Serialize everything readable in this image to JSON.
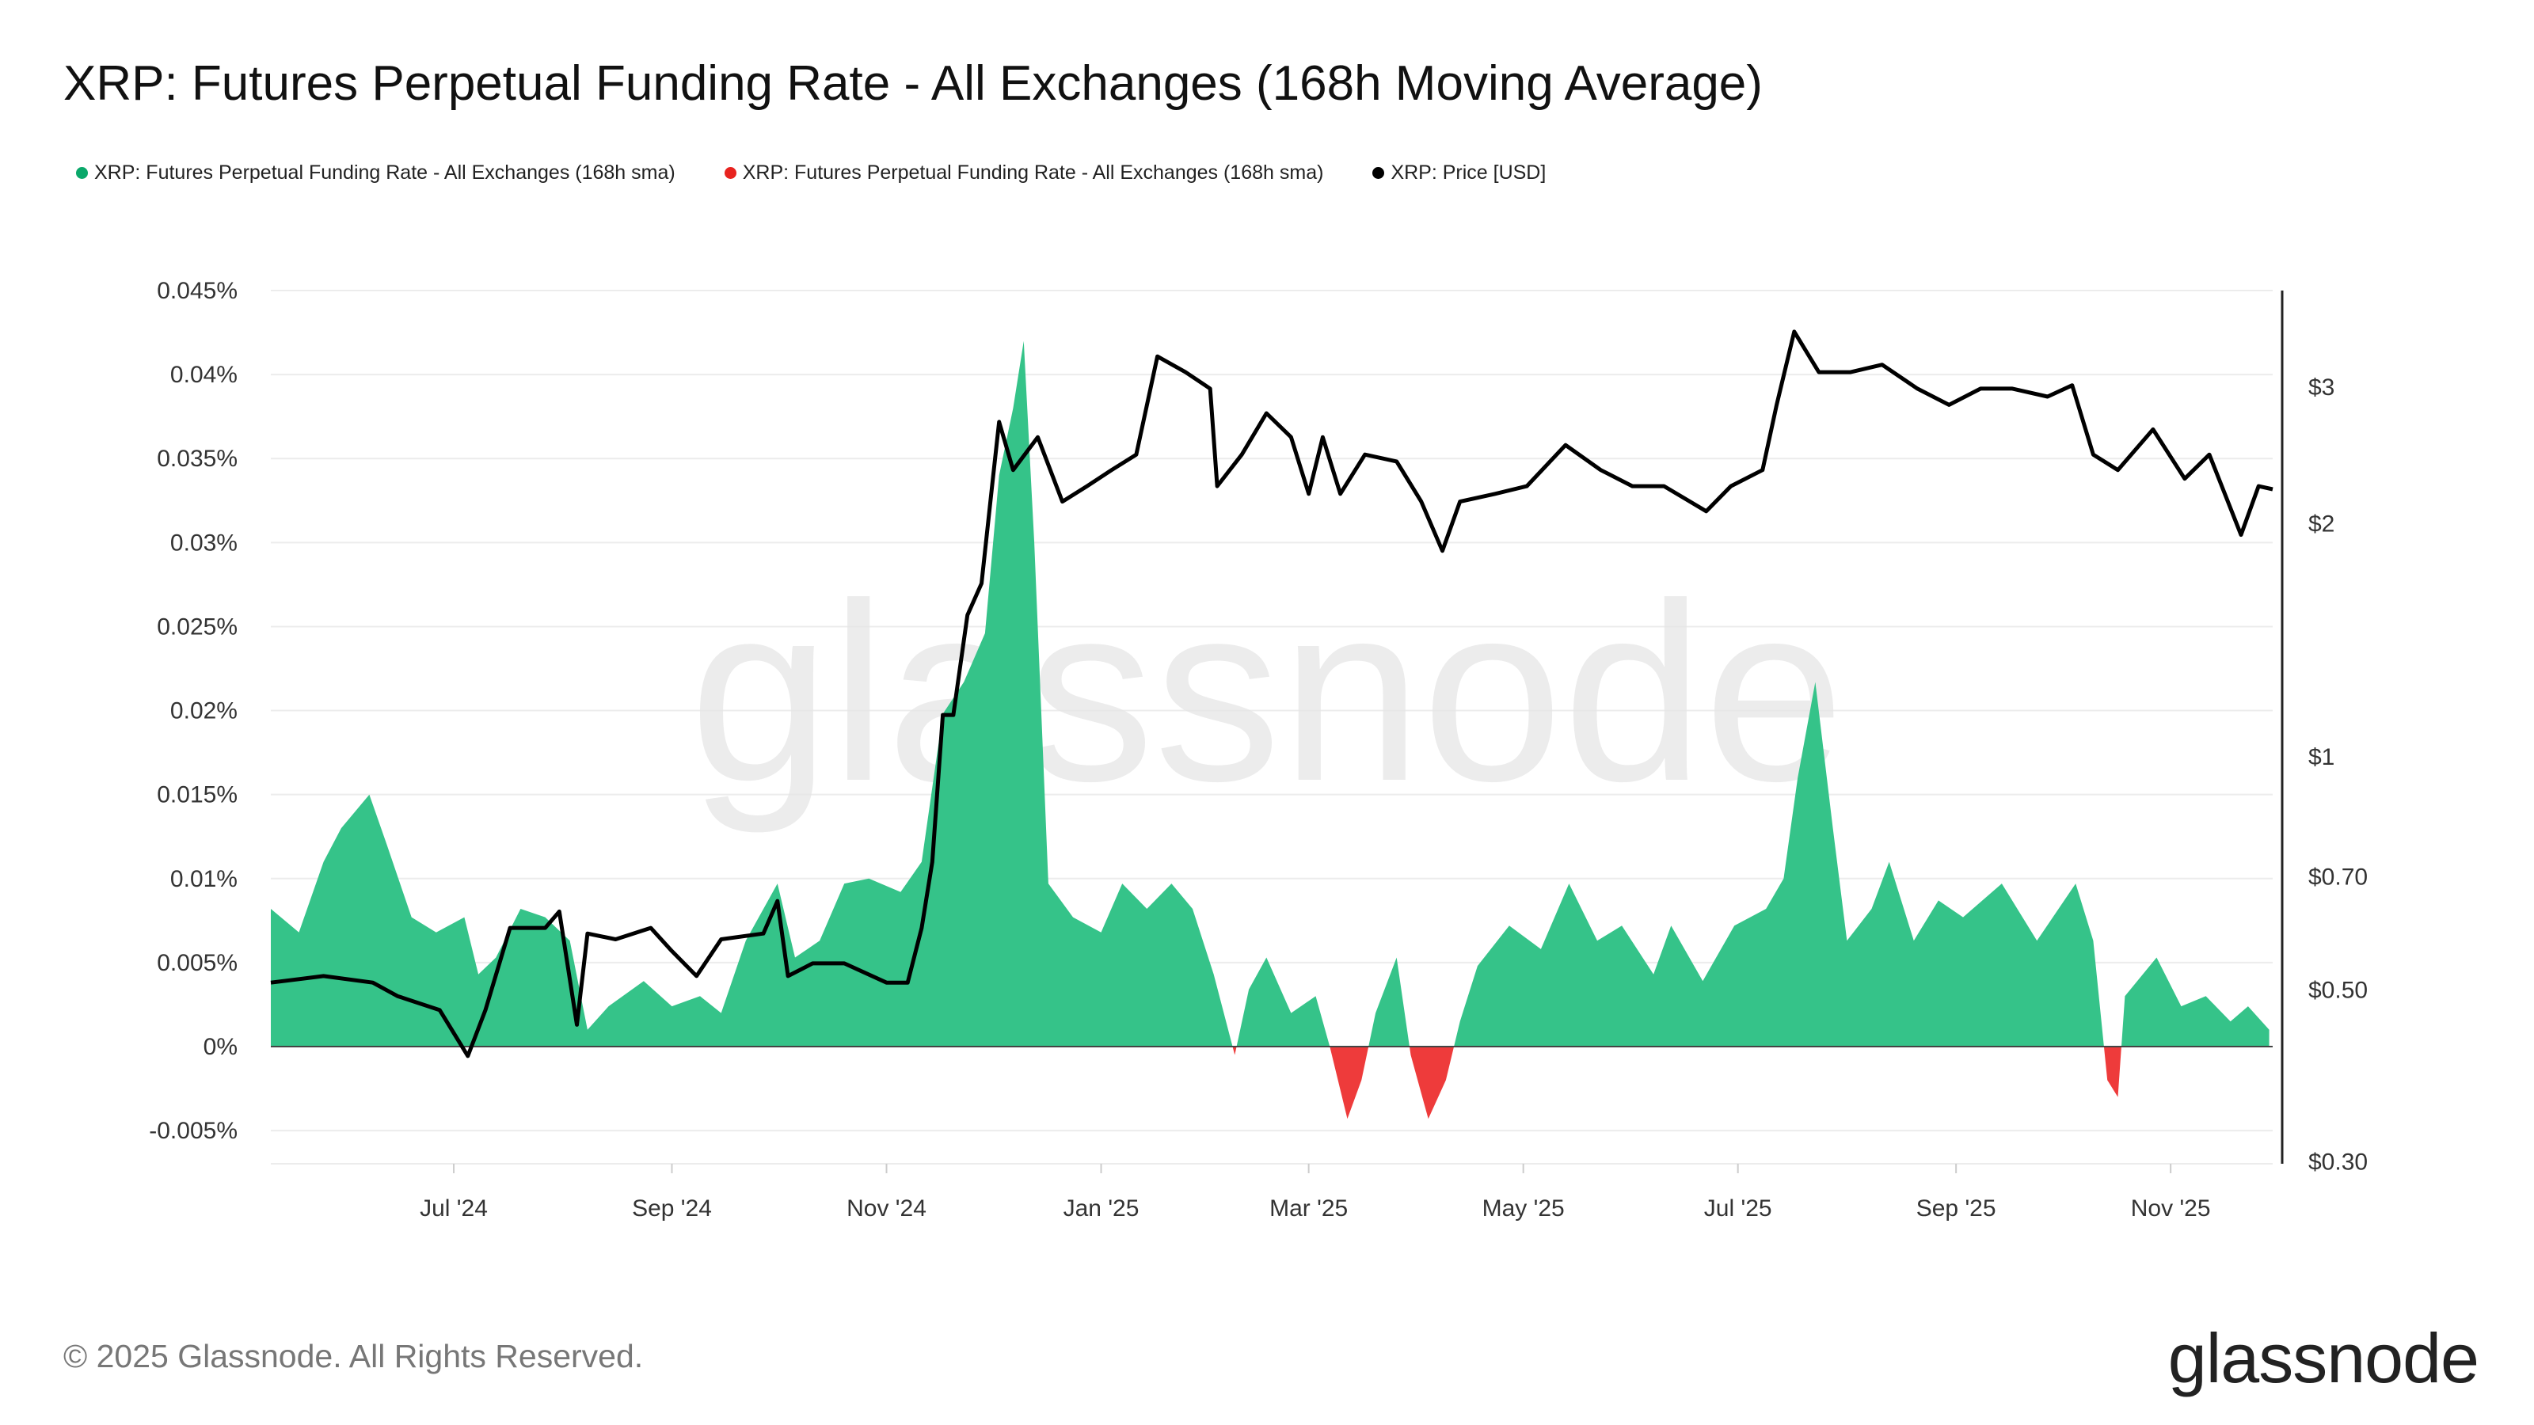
{
  "title": "XRP: Futures Perpetual Funding Rate - All Exchanges (168h Moving Average)",
  "legend": [
    {
      "label": "XRP: Futures Perpetual Funding Rate - All Exchanges (168h sma)",
      "color": "#0aa86a"
    },
    {
      "label": "XRP: Futures Perpetual Funding Rate - All Exchanges (168h sma)",
      "color": "#e8231f"
    },
    {
      "label": "XRP: Price [USD]",
      "color": "#000000"
    }
  ],
  "footer": {
    "copyright": "© 2025 Glassnode. All Rights Reserved.",
    "logo": "glassnode",
    "watermark": "glassnode"
  },
  "chart_data": {
    "type": "area+line",
    "title": "XRP: Futures Perpetual Funding Rate - All Exchanges (168h Moving Average)",
    "x_range": [
      "2024-05-10",
      "2025-11-30"
    ],
    "x_ticks": [
      {
        "date": "2024-07-01",
        "label": "Jul '24"
      },
      {
        "date": "2024-09-01",
        "label": "Sep '24"
      },
      {
        "date": "2024-11-01",
        "label": "Nov '24"
      },
      {
        "date": "2025-01-01",
        "label": "Jan '25"
      },
      {
        "date": "2025-03-01",
        "label": "Mar '25"
      },
      {
        "date": "2025-05-01",
        "label": "May '25"
      },
      {
        "date": "2025-07-01",
        "label": "Jul '25"
      },
      {
        "date": "2025-09-01",
        "label": "Sep '25"
      },
      {
        "date": "2025-11-01",
        "label": "Nov '25"
      }
    ],
    "y_left": {
      "unit": "%",
      "range": [
        -0.007,
        0.045
      ],
      "ticks": [
        0.045,
        0.04,
        0.035,
        0.03,
        0.025,
        0.02,
        0.015,
        0.01,
        0.005,
        0,
        -0.005
      ],
      "tick_labels": [
        "0.045%",
        "0.04%",
        "0.035%",
        "0.03%",
        "0.025%",
        "0.02%",
        "0.015%",
        "0.01%",
        "0.005%",
        "0%",
        "-0.005%"
      ]
    },
    "y_right": {
      "scale": "log",
      "range": [
        0.3,
        3.8
      ],
      "ticks": [
        3,
        2,
        1,
        0.7,
        0.5,
        0.3
      ],
      "tick_labels": [
        "$3",
        "$2",
        "$1",
        "$0.70",
        "$0.50",
        "$0.30"
      ]
    },
    "grid": true,
    "legend_position": "top-left",
    "positive_color": "#35c389",
    "negative_color": "#ee3b3b",
    "price_color": "#000000",
    "funding_rate": [
      [
        "2024-05-10",
        0.0082
      ],
      [
        "2024-05-18",
        0.0068
      ],
      [
        "2024-05-25",
        0.011
      ],
      [
        "2024-05-30",
        0.013
      ],
      [
        "2024-06-07",
        0.015
      ],
      [
        "2024-06-12",
        0.012
      ],
      [
        "2024-06-19",
        0.0077
      ],
      [
        "2024-06-26",
        0.0068
      ],
      [
        "2024-07-04",
        0.0077
      ],
      [
        "2024-07-08",
        0.0043
      ],
      [
        "2024-07-13",
        0.0053
      ],
      [
        "2024-07-20",
        0.0082
      ],
      [
        "2024-07-27",
        0.0077
      ],
      [
        "2024-08-03",
        0.0063
      ],
      [
        "2024-08-08",
        0.001
      ],
      [
        "2024-08-14",
        0.0024
      ],
      [
        "2024-08-24",
        0.0039
      ],
      [
        "2024-09-01",
        0.0024
      ],
      [
        "2024-09-09",
        0.003
      ],
      [
        "2024-09-15",
        0.002
      ],
      [
        "2024-09-22",
        0.0063
      ],
      [
        "2024-10-01",
        0.0097
      ],
      [
        "2024-10-06",
        0.0053
      ],
      [
        "2024-10-13",
        0.0063
      ],
      [
        "2024-10-20",
        0.0097
      ],
      [
        "2024-10-27",
        0.01
      ],
      [
        "2024-11-05",
        0.0092
      ],
      [
        "2024-11-11",
        0.011
      ],
      [
        "2024-11-17",
        0.0198
      ],
      [
        "2024-11-23",
        0.0217
      ],
      [
        "2024-11-29",
        0.0246
      ],
      [
        "2024-12-03",
        0.034
      ],
      [
        "2024-12-07",
        0.038
      ],
      [
        "2024-12-10",
        0.042
      ],
      [
        "2024-12-13",
        0.03
      ],
      [
        "2024-12-17",
        0.0097
      ],
      [
        "2024-12-24",
        0.0077
      ],
      [
        "2025-01-01",
        0.0068
      ],
      [
        "2025-01-07",
        0.0097
      ],
      [
        "2025-01-14",
        0.0082
      ],
      [
        "2025-01-21",
        0.0097
      ],
      [
        "2025-01-27",
        0.0082
      ],
      [
        "2025-02-02",
        0.0043
      ],
      [
        "2025-02-08",
        -0.0005
      ],
      [
        "2025-02-12",
        0.0034
      ],
      [
        "2025-02-17",
        0.0053
      ],
      [
        "2025-02-24",
        0.002
      ],
      [
        "2025-03-03",
        0.003
      ],
      [
        "2025-03-07",
        0
      ],
      [
        "2025-03-12",
        -0.0043
      ],
      [
        "2025-03-16",
        -0.002
      ],
      [
        "2025-03-20",
        0.002
      ],
      [
        "2025-03-26",
        0.0053
      ],
      [
        "2025-03-30",
        -0.0005
      ],
      [
        "2025-04-04",
        -0.0043
      ],
      [
        "2025-04-09",
        -0.002
      ],
      [
        "2025-04-13",
        0.0015
      ],
      [
        "2025-04-18",
        0.0048
      ],
      [
        "2025-04-27",
        0.0072
      ],
      [
        "2025-05-06",
        0.0058
      ],
      [
        "2025-05-14",
        0.0097
      ],
      [
        "2025-05-22",
        0.0063
      ],
      [
        "2025-05-29",
        0.0072
      ],
      [
        "2025-06-07",
        0.0043
      ],
      [
        "2025-06-12",
        0.0072
      ],
      [
        "2025-06-21",
        0.0039
      ],
      [
        "2025-06-30",
        0.0072
      ],
      [
        "2025-07-09",
        0.0082
      ],
      [
        "2025-07-14",
        0.01
      ],
      [
        "2025-07-18",
        0.016
      ],
      [
        "2025-07-23",
        0.0217
      ],
      [
        "2025-07-28",
        0.013
      ],
      [
        "2025-08-01",
        0.0063
      ],
      [
        "2025-08-08",
        0.0082
      ],
      [
        "2025-08-13",
        0.011
      ],
      [
        "2025-08-20",
        0.0063
      ],
      [
        "2025-08-27",
        0.0087
      ],
      [
        "2025-09-03",
        0.0077
      ],
      [
        "2025-09-14",
        0.0097
      ],
      [
        "2025-09-24",
        0.0063
      ],
      [
        "2025-10-05",
        0.0097
      ],
      [
        "2025-10-10",
        0.0063
      ],
      [
        "2025-10-14",
        -0.002
      ],
      [
        "2025-10-17",
        -0.003
      ],
      [
        "2025-10-19",
        0.003
      ],
      [
        "2025-10-28",
        0.0053
      ],
      [
        "2025-11-04",
        0.0024
      ],
      [
        "2025-11-11",
        0.003
      ],
      [
        "2025-11-18",
        0.0015
      ],
      [
        "2025-11-23",
        0.0024
      ],
      [
        "2025-11-29",
        0.001
      ]
    ],
    "price_usd": [
      [
        "2024-05-10",
        0.51
      ],
      [
        "2024-05-25",
        0.52
      ],
      [
        "2024-06-08",
        0.51
      ],
      [
        "2024-06-15",
        0.49
      ],
      [
        "2024-06-27",
        0.47
      ],
      [
        "2024-07-05",
        0.41
      ],
      [
        "2024-07-10",
        0.47
      ],
      [
        "2024-07-17",
        0.6
      ],
      [
        "2024-07-27",
        0.6
      ],
      [
        "2024-07-31",
        0.63
      ],
      [
        "2024-08-05",
        0.45
      ],
      [
        "2024-08-08",
        0.59
      ],
      [
        "2024-08-16",
        0.58
      ],
      [
        "2024-08-26",
        0.6
      ],
      [
        "2024-09-01",
        0.56
      ],
      [
        "2024-09-08",
        0.52
      ],
      [
        "2024-09-15",
        0.58
      ],
      [
        "2024-09-27",
        0.59
      ],
      [
        "2024-10-01",
        0.65
      ],
      [
        "2024-10-04",
        0.52
      ],
      [
        "2024-10-11",
        0.54
      ],
      [
        "2024-10-20",
        0.54
      ],
      [
        "2024-11-01",
        0.51
      ],
      [
        "2024-11-07",
        0.51
      ],
      [
        "2024-11-11",
        0.6
      ],
      [
        "2024-11-14",
        0.73
      ],
      [
        "2024-11-17",
        1.13
      ],
      [
        "2024-11-20",
        1.13
      ],
      [
        "2024-11-24",
        1.52
      ],
      [
        "2024-11-28",
        1.67
      ],
      [
        "2024-12-01",
        2.23
      ],
      [
        "2024-12-03",
        2.7
      ],
      [
        "2024-12-07",
        2.34
      ],
      [
        "2024-12-14",
        2.58
      ],
      [
        "2024-12-21",
        2.13
      ],
      [
        "2024-12-28",
        2.23
      ],
      [
        "2025-01-04",
        2.34
      ],
      [
        "2025-01-11",
        2.45
      ],
      [
        "2025-01-17",
        3.28
      ],
      [
        "2025-01-25",
        3.13
      ],
      [
        "2025-02-01",
        2.98
      ],
      [
        "2025-02-03",
        2.23
      ],
      [
        "2025-02-10",
        2.45
      ],
      [
        "2025-02-17",
        2.77
      ],
      [
        "2025-02-24",
        2.58
      ],
      [
        "2025-03-01",
        2.18
      ],
      [
        "2025-03-05",
        2.58
      ],
      [
        "2025-03-10",
        2.18
      ],
      [
        "2025-03-17",
        2.45
      ],
      [
        "2025-03-26",
        2.4
      ],
      [
        "2025-04-02",
        2.13
      ],
      [
        "2025-04-08",
        1.84
      ],
      [
        "2025-04-13",
        2.13
      ],
      [
        "2025-04-23",
        2.18
      ],
      [
        "2025-05-02",
        2.23
      ],
      [
        "2025-05-13",
        2.52
      ],
      [
        "2025-05-23",
        2.34
      ],
      [
        "2025-06-01",
        2.23
      ],
      [
        "2025-06-10",
        2.23
      ],
      [
        "2025-06-22",
        2.07
      ],
      [
        "2025-06-29",
        2.23
      ],
      [
        "2025-07-08",
        2.34
      ],
      [
        "2025-07-12",
        2.84
      ],
      [
        "2025-07-17",
        3.53
      ],
      [
        "2025-07-24",
        3.13
      ],
      [
        "2025-08-02",
        3.13
      ],
      [
        "2025-08-11",
        3.2
      ],
      [
        "2025-08-21",
        2.98
      ],
      [
        "2025-08-30",
        2.84
      ],
      [
        "2025-09-08",
        2.98
      ],
      [
        "2025-09-17",
        2.98
      ],
      [
        "2025-09-27",
        2.91
      ],
      [
        "2025-10-04",
        3.01
      ],
      [
        "2025-10-10",
        2.45
      ],
      [
        "2025-10-17",
        2.34
      ],
      [
        "2025-10-27",
        2.64
      ],
      [
        "2025-11-05",
        2.28
      ],
      [
        "2025-11-12",
        2.45
      ],
      [
        "2025-11-21",
        1.93
      ],
      [
        "2025-11-26",
        2.23
      ],
      [
        "2025-11-30",
        2.21
      ]
    ]
  }
}
